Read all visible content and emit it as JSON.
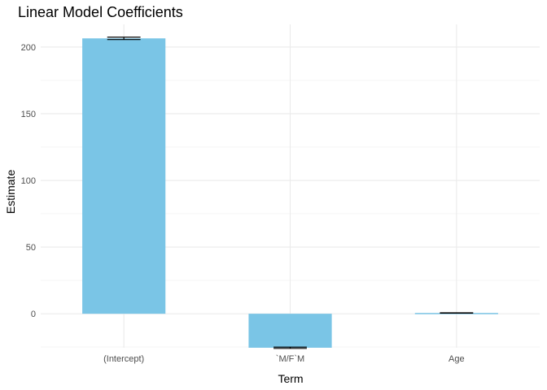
{
  "colors": {
    "bar_fill": "#7AC5E6",
    "error_bar": "#000000",
    "grid_major": "#EBEBEB",
    "grid_minor": "#F5F5F5",
    "background": "#FFFFFF"
  },
  "chart_data": {
    "type": "bar",
    "title": "Linear Model Coefficients",
    "xlabel": "Term",
    "ylabel": "Estimate",
    "categories": [
      "(Intercept)",
      "`M/F`M",
      "Age"
    ],
    "values": [
      206.5,
      -25.5,
      0.6
    ],
    "error_low": [
      205.6,
      -26.0,
      0.45
    ],
    "error_high": [
      207.4,
      -25.0,
      0.75
    ],
    "ylim": [
      -25.5,
      217
    ],
    "yticks": [
      0,
      50,
      100,
      150,
      200
    ],
    "grid": true,
    "legend": "none"
  }
}
